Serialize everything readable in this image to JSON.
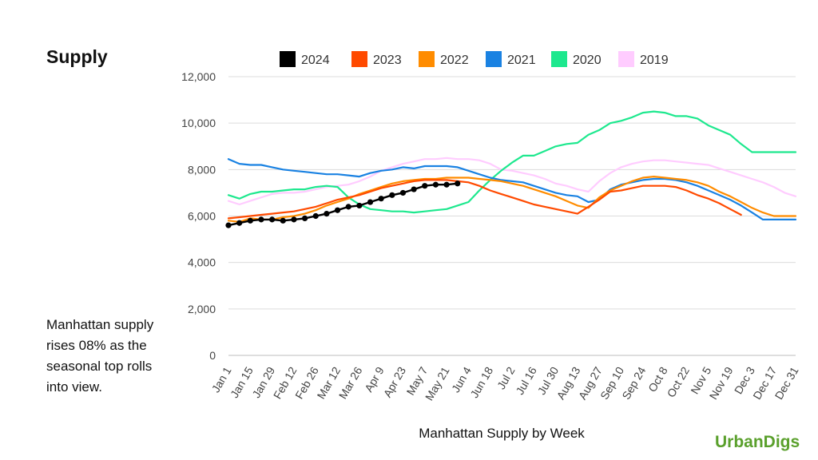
{
  "page": {
    "title": "Supply",
    "commentary": "Manhattan supply rises 08% as the seasonal top rolls into view.",
    "brand": "UrbanDigs"
  },
  "chart_data": {
    "type": "line",
    "title": "Supply",
    "xlabel": "Manhattan Supply by Week",
    "ylabel": "",
    "ylim": [
      0,
      12000
    ],
    "yticks": [
      0,
      2000,
      4000,
      6000,
      8000,
      10000,
      12000
    ],
    "ytick_labels": [
      "0",
      "2,000",
      "4,000",
      "6,000",
      "8,000",
      "10,000",
      "12,000"
    ],
    "grid": true,
    "legend_position": "top",
    "week_count": 53,
    "xtick_labels": [
      "Jan 1",
      "Jan 15",
      "Jan 29",
      "Feb 12",
      "Feb 26",
      "Mar 12",
      "Mar 26",
      "Apr 9",
      "Apr 23",
      "May 7",
      "May 21",
      "Jun 4",
      "Jun 18",
      "Jul 2",
      "Jul 16",
      "Jul 30",
      "Aug 13",
      "Aug 27",
      "Sep 10",
      "Sep 24",
      "Oct 8",
      "Oct 22",
      "Nov 5",
      "Nov 19",
      "Dec 3",
      "Dec 17",
      "Dec 31"
    ],
    "series": [
      {
        "name": "2019",
        "color": "#ffccff",
        "markers": false,
        "values": [
          6650,
          6500,
          6650,
          6800,
          6950,
          7000,
          7000,
          7050,
          7150,
          7250,
          7300,
          7350,
          7500,
          7700,
          7950,
          8100,
          8250,
          8350,
          8450,
          8450,
          8500,
          8450,
          8450,
          8400,
          8250,
          8000,
          7950,
          7850,
          7750,
          7600,
          7400,
          7300,
          7150,
          7050,
          7500,
          7850,
          8100,
          8250,
          8350,
          8400,
          8400,
          8350,
          8300,
          8250,
          8200,
          8050,
          7900,
          7750,
          7600,
          7450,
          7250,
          7000,
          6850
        ]
      },
      {
        "name": "2020",
        "color": "#1de88e",
        "markers": false,
        "values": [
          6900,
          6750,
          6950,
          7050,
          7050,
          7100,
          7150,
          7150,
          7250,
          7300,
          7250,
          6800,
          6500,
          6300,
          6250,
          6200,
          6200,
          6150,
          6200,
          6250,
          6300,
          6450,
          6600,
          7100,
          7550,
          7950,
          8300,
          8600,
          8600,
          8800,
          9000,
          9100,
          9150,
          9500,
          9700,
          10000,
          10100,
          10250,
          10450,
          10500,
          10450,
          10300,
          10300,
          10200,
          9900,
          9700,
          9500,
          9100,
          8750,
          8750,
          8750,
          8750,
          8750
        ]
      },
      {
        "name": "2021",
        "color": "#1a82e2",
        "markers": false,
        "values": [
          8450,
          8250,
          8200,
          8200,
          8100,
          8000,
          7950,
          7900,
          7850,
          7800,
          7800,
          7750,
          7700,
          7850,
          7950,
          8000,
          8100,
          8050,
          8150,
          8150,
          8150,
          8100,
          7950,
          7800,
          7650,
          7550,
          7500,
          7450,
          7300,
          7150,
          7000,
          6900,
          6850,
          6600,
          6700,
          7150,
          7350,
          7450,
          7550,
          7600,
          7600,
          7550,
          7450,
          7300,
          7100,
          6900,
          6700,
          6450,
          6150,
          5850,
          5850,
          5850,
          5850
        ]
      },
      {
        "name": "2022",
        "color": "#ff8c00",
        "markers": false,
        "values": [
          5800,
          5750,
          5900,
          5850,
          5850,
          5950,
          6000,
          6100,
          6250,
          6450,
          6600,
          6750,
          6950,
          7100,
          7250,
          7400,
          7500,
          7550,
          7600,
          7600,
          7650,
          7650,
          7650,
          7600,
          7550,
          7500,
          7400,
          7300,
          7150,
          7000,
          6850,
          6650,
          6450,
          6350,
          6800,
          7100,
          7300,
          7500,
          7650,
          7700,
          7650,
          7600,
          7550,
          7450,
          7300,
          7050,
          6850,
          6600,
          6350,
          6150,
          6000,
          6000,
          6000
        ]
      },
      {
        "name": "2023",
        "color": "#ff4a00",
        "markers": false,
        "values": [
          5900,
          5950,
          6000,
          6050,
          6100,
          6150,
          6200,
          6300,
          6400,
          6550,
          6700,
          6800,
          6900,
          7050,
          7200,
          7300,
          7400,
          7500,
          7550,
          7550,
          7550,
          7500,
          7450,
          7300,
          7100,
          6950,
          6800,
          6650,
          6500,
          6400,
          6300,
          6200,
          6100,
          6400,
          6700,
          7050,
          7100,
          7200,
          7300,
          7300,
          7300,
          7250,
          7100,
          6900,
          6750,
          6550,
          6300,
          6050
        ]
      },
      {
        "name": "2024",
        "color": "#000000",
        "markers": true,
        "values": [
          5600,
          5700,
          5800,
          5850,
          5850,
          5800,
          5850,
          5900,
          6000,
          6100,
          6250,
          6400,
          6450,
          6600,
          6750,
          6900,
          7000,
          7150,
          7300,
          7350,
          7350,
          7400
        ]
      }
    ]
  }
}
